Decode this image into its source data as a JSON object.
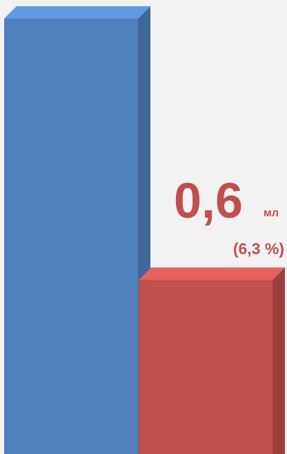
{
  "chart_data": {
    "type": "bar3d",
    "categories": [
      null,
      null
    ],
    "series": [
      {
        "colors": [
          "#4f81bd",
          "#c0504d"
        ],
        "values": [
          1.5,
          0.6
        ],
        "value_labels": [
          null,
          "0,6"
        ]
      }
    ],
    "unit": "мл",
    "annotation": "(6,3 %)",
    "ylim": [
      0,
      1.5
    ]
  }
}
